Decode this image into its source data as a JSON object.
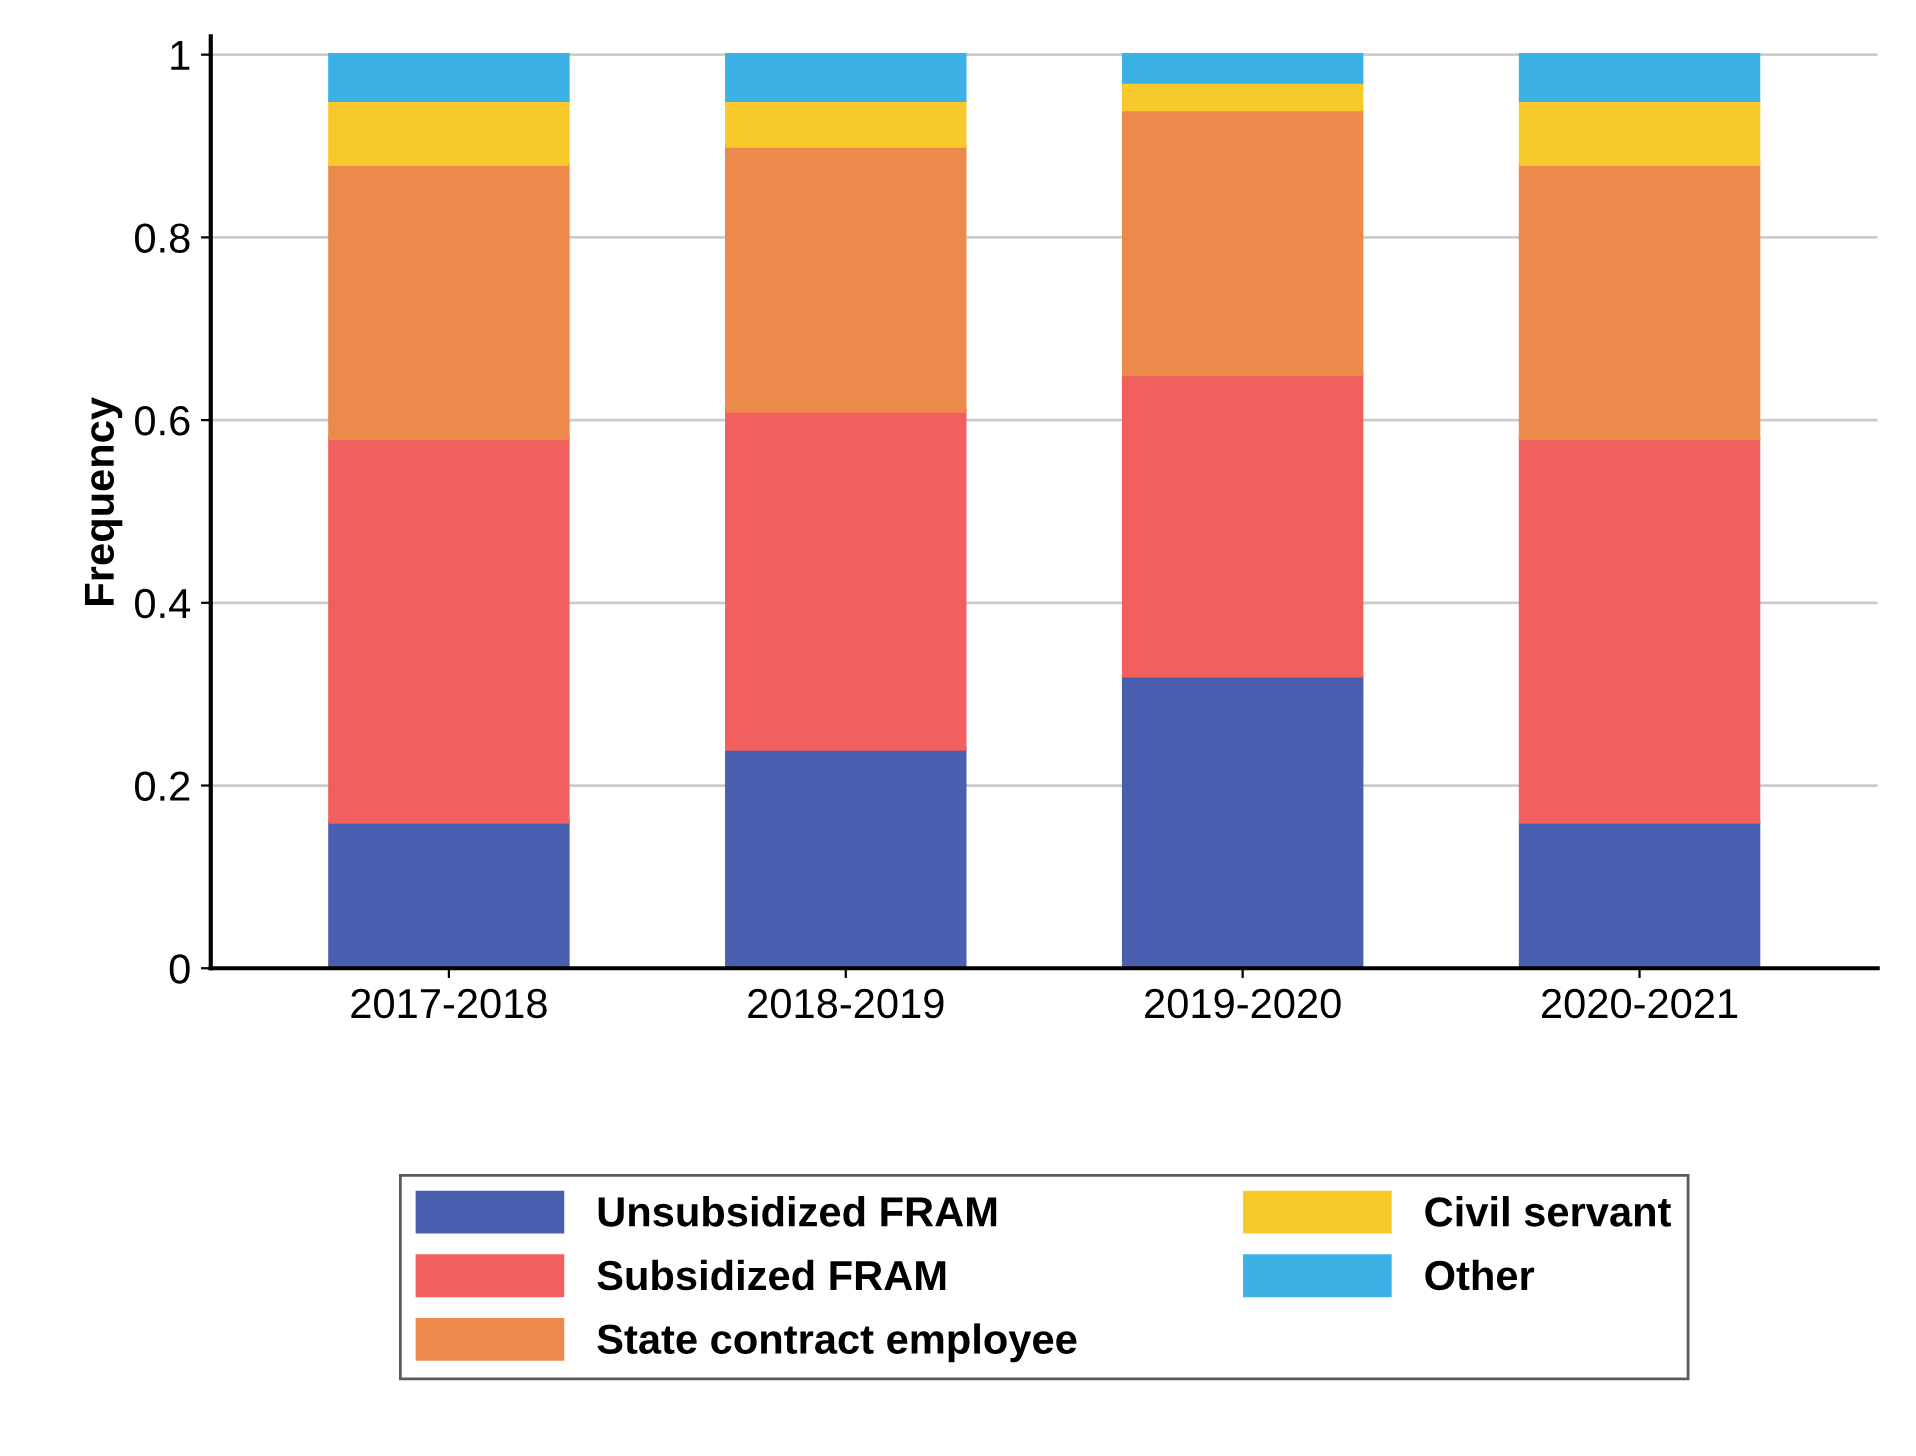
{
  "chart_data": {
    "type": "bar",
    "stacked": true,
    "ylabel": "Frequency",
    "categories": [
      "2017-2018",
      "2018-2019",
      "2019-2020",
      "2020-2021"
    ],
    "series": [
      {
        "name": "Unsubsidized FRAM",
        "color": "#4a5fb0",
        "values": [
          0.16,
          0.24,
          0.32,
          0.16
        ]
      },
      {
        "name": "Subsidized FRAM",
        "color": "#f25f5f",
        "values": [
          0.42,
          0.37,
          0.33,
          0.42
        ]
      },
      {
        "name": "State contract employee",
        "color": "#ec8a4c",
        "values": [
          0.3,
          0.29,
          0.29,
          0.3
        ]
      },
      {
        "name": "Civil servant",
        "color": "#f7c92a",
        "values": [
          0.07,
          0.05,
          0.03,
          0.07
        ]
      },
      {
        "name": "Other",
        "color": "#3bb1e6",
        "values": [
          0.05,
          0.05,
          0.03,
          0.05
        ]
      }
    ],
    "ylim": [
      0,
      1.02
    ],
    "yticks": [
      0,
      {
        "value": 0.2,
        "label": "0.2"
      },
      {
        "value": 0.4,
        "label": "0.4"
      },
      {
        "value": 0.6,
        "label": "0.6"
      },
      {
        "value": 0.8,
        "label": "0.8"
      },
      1
    ],
    "grid": "y",
    "legend": "bottom"
  }
}
